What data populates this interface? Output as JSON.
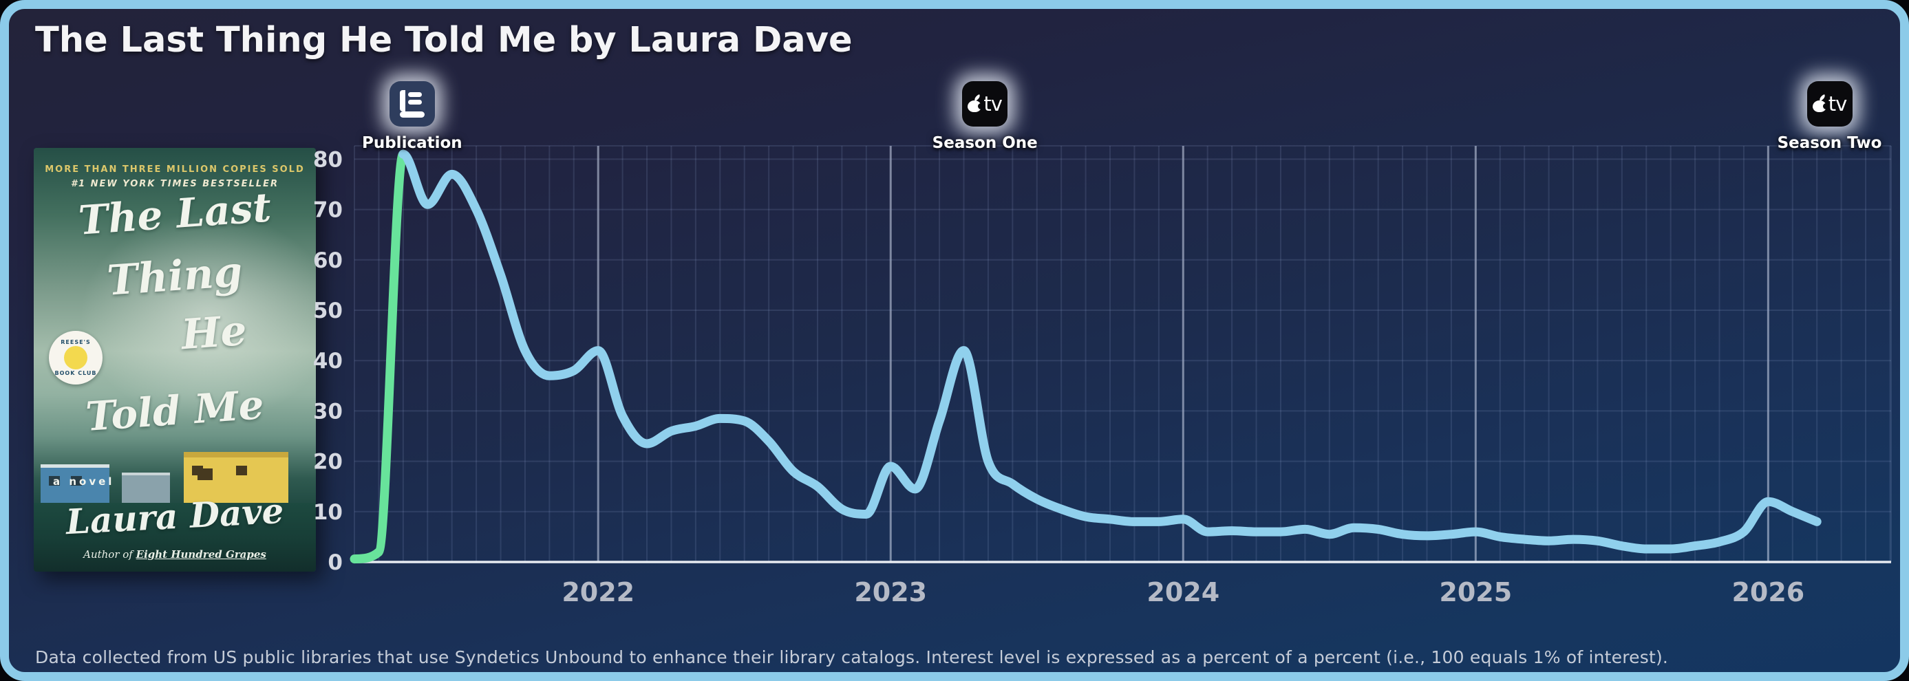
{
  "title": "The Last Thing He Told Me by Laura Dave",
  "footer": {
    "text": "Data collected from US public libraries that use Syndetics Unbound to enhance their library catalogs. Interest level is expressed as a percent of a percent (i.e., 100 equals 1% of interest)."
  },
  "cover": {
    "tagline1": "MORE THAN THREE MILLION COPIES SOLD",
    "tagline2": "#1 NEW YORK TIMES BESTSELLER",
    "title_line1": "The Last",
    "title_line2": "Thing",
    "title_line3": "He",
    "title_line4": "Told Me",
    "badge_top": "REESE'S",
    "badge_bottom": "BOOK CLUB",
    "a_novel": "a novel",
    "author": "Laura Dave",
    "author_prefix": "Author of ",
    "author_work": "Eight Hundred Grapes"
  },
  "chart_data": {
    "type": "line",
    "title": "The Last Thing He Told Me by Laura Dave",
    "ylabel": "Interest level (percent of a percent)",
    "xlabel": "",
    "ylim": [
      0,
      82.5
    ],
    "grid": true,
    "y_ticks": [
      0,
      10,
      20,
      30,
      40,
      50,
      60,
      70,
      80
    ],
    "x_ticks": [
      {
        "label": "2022",
        "month": "2022-01"
      },
      {
        "label": "2023",
        "month": "2023-01"
      },
      {
        "label": "2024",
        "month": "2024-01"
      },
      {
        "label": "2025",
        "month": "2025-01"
      },
      {
        "label": "2026",
        "month": "2026-01"
      }
    ],
    "months": [
      "2021-03",
      "2021-04",
      "2021-05",
      "2021-06",
      "2021-07",
      "2021-08",
      "2021-09",
      "2021-10",
      "2021-11",
      "2021-12",
      "2022-01",
      "2022-02",
      "2022-03",
      "2022-04",
      "2022-05",
      "2022-06",
      "2022-07",
      "2022-08",
      "2022-09",
      "2022-10",
      "2022-11",
      "2022-12",
      "2023-01",
      "2023-02",
      "2023-03",
      "2023-04",
      "2023-05",
      "2023-06",
      "2023-07",
      "2023-08",
      "2023-09",
      "2023-10",
      "2023-11",
      "2023-12",
      "2024-01",
      "2024-02",
      "2024-03",
      "2024-04",
      "2024-05",
      "2024-06",
      "2024-07",
      "2024-08",
      "2024-09",
      "2024-10",
      "2024-11",
      "2024-12",
      "2025-01",
      "2025-02",
      "2025-03",
      "2025-04",
      "2025-05",
      "2025-06",
      "2025-07",
      "2025-08",
      "2025-09",
      "2025-10",
      "2025-11",
      "2025-12",
      "2026-01",
      "2026-02",
      "2026-03"
    ],
    "values": [
      0.6,
      2,
      81,
      71,
      77,
      70,
      57,
      42,
      37,
      38,
      42,
      29,
      23.5,
      26,
      27,
      28.5,
      28,
      24,
      18,
      15,
      10.5,
      9.5,
      19,
      14.5,
      28,
      42,
      20,
      15.5,
      12.5,
      10.5,
      9,
      8.5,
      8,
      8,
      8.5,
      6,
      6.2,
      6,
      6,
      6.5,
      5.5,
      6.8,
      6.5,
      5.5,
      5.2,
      5.5,
      6,
      5,
      4.5,
      4.2,
      4.5,
      4.2,
      3.2,
      2.6,
      2.6,
      3.2,
      4,
      6,
      12,
      10,
      8
    ],
    "series_colors": {
      "pre_release_green": "#68e39b",
      "post_release_blue": "#90d0ed"
    },
    "green_segment_end_month": "2021-05",
    "annotations": [
      {
        "id": "publication",
        "label": "Publication",
        "icon": "book-icon",
        "month": "2021-05"
      },
      {
        "id": "season-one",
        "label": "Season One",
        "icon": "apple-tv-icon",
        "month": "2023-04"
      },
      {
        "id": "season-two",
        "label": "Season Two",
        "icon": "apple-tv-icon",
        "month": "2026-03"
      }
    ],
    "legend": "none"
  }
}
